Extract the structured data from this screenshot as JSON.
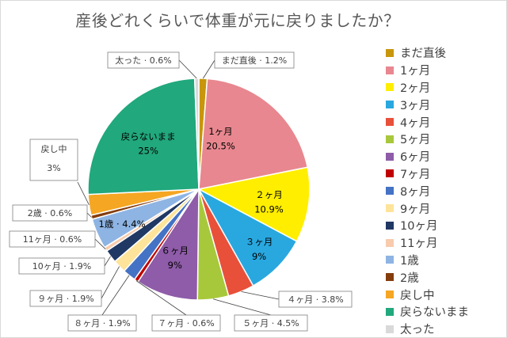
{
  "chart_data": {
    "type": "pie",
    "title": "産後どれくらいで体重が元に戻りましたか？",
    "categories": [
      "まだ直後",
      "1ヶ月",
      "2ヶ月",
      "3ヶ月",
      "4ヶ月",
      "5ヶ月",
      "6ヶ月",
      "7ヶ月",
      "8ヶ月",
      "9ヶ月",
      "10ヶ月",
      "11ヶ月",
      "1歳",
      "2歳",
      "戻し中",
      "戻らないまま",
      "太った"
    ],
    "values": [
      1.2,
      20.5,
      10.9,
      9,
      3.8,
      4.5,
      9,
      0.6,
      1.9,
      1.9,
      1.9,
      0.6,
      4.4,
      0.6,
      3,
      25,
      0.6
    ],
    "colors": [
      "#c8960c",
      "#e8878f",
      "#ffee00",
      "#29a8e0",
      "#e8503a",
      "#a8c83c",
      "#8e5ca8",
      "#c00000",
      "#4472c4",
      "#fde49a",
      "#203864",
      "#f8cbad",
      "#8eb4e3",
      "#843c0c",
      "#f5a623",
      "#21a87c",
      "#d9d9d9"
    ],
    "data_labels": [
      {
        "name": "まだ直後",
        "value": "1.2%"
      },
      {
        "name": "1ヶ月",
        "value": "20.5%"
      },
      {
        "name": "２ヶ月",
        "value": "10.9%"
      },
      {
        "name": "３ヶ月",
        "value": "9%"
      },
      {
        "name": "４ヶ月",
        "value": "3.8%"
      },
      {
        "name": "５ヶ月",
        "value": "4.5%"
      },
      {
        "name": "６ヶ月",
        "value": "9%"
      },
      {
        "name": "７ヶ月",
        "value": "0.6%"
      },
      {
        "name": "８ヶ月",
        "value": "1.9%"
      },
      {
        "name": "９ヶ月",
        "value": "1.9%"
      },
      {
        "name": "10ヶ月",
        "value": "1.9%"
      },
      {
        "name": "11ヶ月",
        "value": "0.6%"
      },
      {
        "name": "1歳",
        "value": "4.4%"
      },
      {
        "name": "2歳",
        "value": "0.6%"
      },
      {
        "name": "戻し中",
        "value": "3%"
      },
      {
        "name": "戻らないまま",
        "value": "25%"
      },
      {
        "name": "太った",
        "value": "0.6%"
      }
    ],
    "legend_position": "right"
  }
}
